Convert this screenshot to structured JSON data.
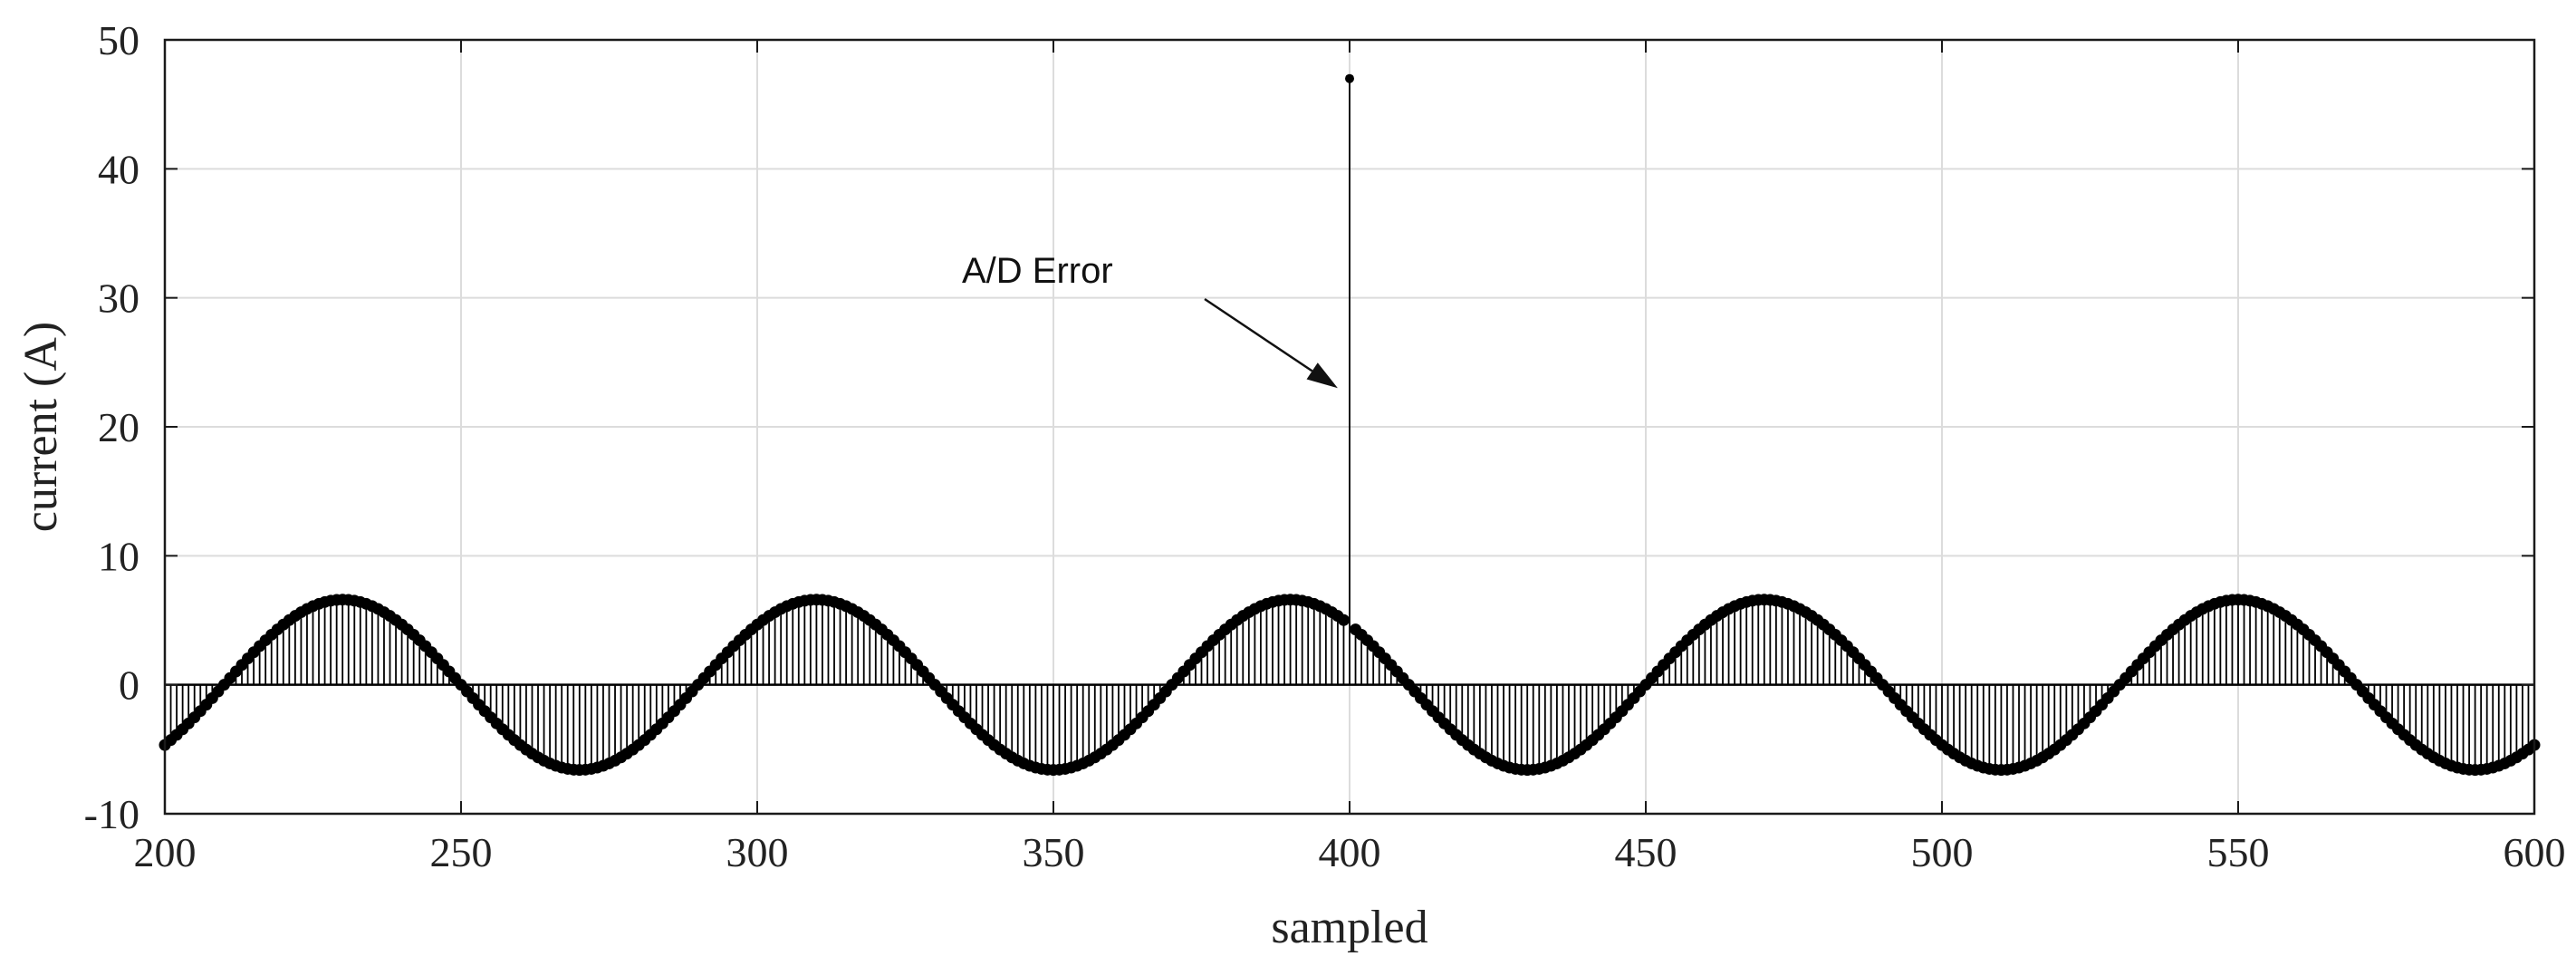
{
  "chart_data": {
    "type": "stem",
    "xlabel": "sampled",
    "ylabel": "current (A)",
    "xlim": [
      200,
      600
    ],
    "ylim": [
      -10,
      50
    ],
    "xticks": [
      "200",
      "250",
      "300",
      "350",
      "400",
      "450",
      "500",
      "550",
      "600"
    ],
    "yticks": [
      "-10",
      "0",
      "10",
      "20",
      "30",
      "40",
      "50"
    ],
    "grid": true,
    "series": [
      {
        "signal": "sinusoid",
        "amplitude": 6.6,
        "period_samples": 80,
        "peak_at_sample": 230,
        "sample_range": [
          200,
          600
        ],
        "sample_step": 1,
        "color": "#000000"
      }
    ],
    "outliers": [
      {
        "x": 400,
        "y": 47
      }
    ],
    "annotations": [
      {
        "text": "A/D  Error",
        "arrow_to": {
          "x": 398,
          "y": 23
        }
      }
    ]
  }
}
